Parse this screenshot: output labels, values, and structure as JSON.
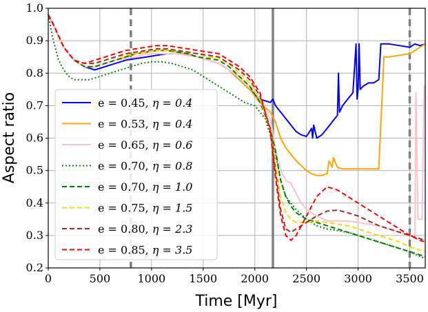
{
  "chart_data": {
    "type": "line",
    "title": "",
    "xlabel": "Time [Myr]",
    "ylabel": "Aspect ratio",
    "xlim": [
      0,
      3650
    ],
    "ylim": [
      0.2,
      1.0
    ],
    "grid": true,
    "legend_position": "center-left",
    "xticks": [
      0,
      500,
      1000,
      1500,
      2000,
      2500,
      3000,
      3500
    ],
    "xtick_labels": [
      "0",
      "500",
      "1000",
      "1500",
      "2000",
      "2500",
      "3000",
      "3500"
    ],
    "yticks": [
      0.2,
      0.3,
      0.4,
      0.5,
      0.6,
      0.7,
      0.8,
      0.9,
      1.0
    ],
    "ytick_labels": [
      "0.2",
      "0.3",
      "0.4",
      "0.5",
      "0.6",
      "0.7",
      "0.8",
      "0.9",
      "1.0"
    ],
    "vertical_lines": [
      {
        "x": 800,
        "style": "dashed"
      },
      {
        "x": 2175,
        "style": "solid"
      },
      {
        "x": 3500,
        "style": "dashed"
      }
    ],
    "series": [
      {
        "name": "e = 0.45, η = 0.4",
        "label_e": "e = 0.45, ",
        "label_eta": "η = 0.4",
        "color": "#0000ff",
        "dash": "solid",
        "x": [
          0,
          50,
          150,
          250,
          350,
          450,
          550,
          650,
          750,
          850,
          950,
          1050,
          1150,
          1250,
          1350,
          1450,
          1550,
          1650,
          1750,
          1850,
          1950,
          2050,
          2150,
          2175,
          2200,
          2250,
          2300,
          2350,
          2400,
          2450,
          2500,
          2550,
          2560,
          2570,
          2600,
          2650,
          2700,
          2750,
          2800,
          2810,
          2820,
          2850,
          2900,
          2950,
          2980,
          2990,
          3000,
          3010,
          3020,
          3050,
          3100,
          3150,
          3200,
          3220,
          3250,
          3300,
          3400,
          3500,
          3550,
          3600,
          3650
        ],
        "y": [
          0.98,
          0.95,
          0.88,
          0.84,
          0.82,
          0.81,
          0.82,
          0.83,
          0.84,
          0.845,
          0.85,
          0.855,
          0.86,
          0.86,
          0.855,
          0.85,
          0.84,
          0.83,
          0.81,
          0.78,
          0.75,
          0.72,
          0.71,
          0.72,
          0.7,
          0.68,
          0.66,
          0.64,
          0.62,
          0.61,
          0.605,
          0.63,
          0.6,
          0.64,
          0.6,
          0.61,
          0.63,
          0.65,
          0.67,
          0.8,
          0.68,
          0.7,
          0.72,
          0.74,
          0.89,
          0.72,
          0.75,
          0.89,
          0.75,
          0.76,
          0.77,
          0.77,
          0.78,
          0.89,
          0.89,
          0.89,
          0.885,
          0.88,
          0.89,
          0.885,
          0.89
        ]
      },
      {
        "name": "e = 0.53, η = 0.4",
        "label_e": "e = 0.53, ",
        "label_eta": "η = 0.4",
        "color": "#ffa500",
        "dash": "solid",
        "x": [
          0,
          50,
          150,
          250,
          350,
          450,
          550,
          650,
          750,
          850,
          950,
          1050,
          1150,
          1250,
          1350,
          1450,
          1550,
          1650,
          1750,
          1850,
          1950,
          2050,
          2150,
          2200,
          2250,
          2300,
          2350,
          2400,
          2450,
          2500,
          2550,
          2600,
          2650,
          2700,
          2720,
          2750,
          2760,
          2800,
          2850,
          3000,
          3100,
          3200,
          3250,
          3300,
          3400,
          3500,
          3600,
          3650
        ],
        "y": [
          0.98,
          0.95,
          0.88,
          0.84,
          0.82,
          0.82,
          0.83,
          0.84,
          0.85,
          0.86,
          0.865,
          0.87,
          0.87,
          0.865,
          0.86,
          0.85,
          0.84,
          0.83,
          0.81,
          0.78,
          0.75,
          0.71,
          0.68,
          0.65,
          0.6,
          0.57,
          0.55,
          0.53,
          0.515,
          0.5,
          0.49,
          0.485,
          0.485,
          0.49,
          0.53,
          0.51,
          0.54,
          0.51,
          0.505,
          0.505,
          0.505,
          0.505,
          0.85,
          0.85,
          0.855,
          0.86,
          0.88,
          0.89
        ]
      },
      {
        "name": "e = 0.65, η = 0.6",
        "label_e": "e = 0.65, ",
        "label_eta": "η = 0.6",
        "color": "#ffc0cb",
        "dash": "solid",
        "x": [
          0,
          50,
          150,
          250,
          350,
          450,
          550,
          650,
          750,
          850,
          950,
          1050,
          1150,
          1250,
          1350,
          1450,
          1550,
          1650,
          1750,
          1850,
          1950,
          2050,
          2150,
          2200,
          2250,
          2300,
          2350,
          2400,
          2450,
          2500,
          2600,
          2700,
          2800,
          2900,
          3000,
          3100,
          3200,
          3300,
          3400,
          3500,
          3550,
          3560,
          3580,
          3600,
          3620,
          3640,
          3650
        ],
        "y": [
          0.98,
          0.95,
          0.88,
          0.84,
          0.82,
          0.82,
          0.83,
          0.84,
          0.845,
          0.85,
          0.86,
          0.86,
          0.86,
          0.86,
          0.855,
          0.85,
          0.84,
          0.83,
          0.81,
          0.79,
          0.76,
          0.72,
          0.66,
          0.57,
          0.5,
          0.47,
          0.46,
          0.43,
          0.4,
          0.38,
          0.36,
          0.345,
          0.345,
          0.345,
          0.34,
          0.335,
          0.33,
          0.32,
          0.31,
          0.3,
          0.3,
          0.74,
          0.35,
          0.35,
          0.35,
          0.76,
          0.76
        ]
      },
      {
        "name": "e = 0.70, η = 0.8",
        "label_e": "e = 0.70, ",
        "label_eta": "η = 0.8",
        "color": "#008000",
        "dash": "dotted",
        "x": [
          0,
          50,
          100,
          150,
          200,
          250,
          300,
          350,
          400,
          450,
          500,
          600,
          700,
          800,
          900,
          1000,
          1100,
          1200,
          1300,
          1400,
          1500,
          1600,
          1700,
          1800,
          1900,
          2000,
          2100,
          2150,
          2200,
          2250,
          2300,
          2400,
          2500,
          2600,
          2700,
          2800,
          2900,
          3000,
          3100,
          3200,
          3300,
          3400,
          3500,
          3600,
          3650
        ],
        "y": [
          0.98,
          0.9,
          0.84,
          0.81,
          0.79,
          0.78,
          0.78,
          0.78,
          0.78,
          0.785,
          0.79,
          0.8,
          0.81,
          0.82,
          0.83,
          0.835,
          0.835,
          0.83,
          0.82,
          0.81,
          0.79,
          0.77,
          0.75,
          0.73,
          0.71,
          0.7,
          0.66,
          0.61,
          0.55,
          0.47,
          0.42,
          0.38,
          0.35,
          0.33,
          0.32,
          0.315,
          0.31,
          0.3,
          0.29,
          0.28,
          0.27,
          0.26,
          0.25,
          0.235,
          0.23
        ]
      },
      {
        "name": "e = 0.70, η = 1.0",
        "label_e": "e = 0.70, ",
        "label_eta": "η = 1.0",
        "color": "#008000",
        "dash": "dashed",
        "x": [
          0,
          50,
          150,
          250,
          350,
          450,
          550,
          650,
          750,
          850,
          950,
          1050,
          1150,
          1250,
          1350,
          1450,
          1550,
          1650,
          1750,
          1850,
          1950,
          2050,
          2150,
          2200,
          2250,
          2300,
          2350,
          2400,
          2500,
          2600,
          2700,
          2800,
          2900,
          3000,
          3100,
          3200,
          3300,
          3400,
          3500,
          3600,
          3650
        ],
        "y": [
          0.98,
          0.95,
          0.88,
          0.84,
          0.82,
          0.82,
          0.83,
          0.84,
          0.85,
          0.86,
          0.865,
          0.87,
          0.87,
          0.865,
          0.86,
          0.85,
          0.845,
          0.84,
          0.82,
          0.79,
          0.76,
          0.71,
          0.63,
          0.56,
          0.47,
          0.42,
          0.39,
          0.37,
          0.35,
          0.34,
          0.33,
          0.32,
          0.31,
          0.3,
          0.29,
          0.28,
          0.27,
          0.26,
          0.25,
          0.24,
          0.235
        ]
      },
      {
        "name": "e = 0.75, η = 1.5",
        "label_e": "e = 0.75, ",
        "label_eta": "η = 1.5",
        "color": "#ffd700",
        "dash": "dashed",
        "x": [
          0,
          50,
          150,
          250,
          350,
          450,
          550,
          650,
          750,
          850,
          950,
          1050,
          1150,
          1250,
          1350,
          1450,
          1550,
          1650,
          1750,
          1850,
          1950,
          2050,
          2150,
          2200,
          2250,
          2300,
          2350,
          2400,
          2500,
          2600,
          2700,
          2800,
          2900,
          3000,
          3100,
          3200,
          3300,
          3400,
          3500,
          3600,
          3650
        ],
        "y": [
          0.98,
          0.95,
          0.88,
          0.84,
          0.83,
          0.83,
          0.84,
          0.85,
          0.855,
          0.86,
          0.865,
          0.87,
          0.87,
          0.87,
          0.865,
          0.86,
          0.85,
          0.845,
          0.83,
          0.8,
          0.77,
          0.72,
          0.63,
          0.52,
          0.42,
          0.37,
          0.35,
          0.34,
          0.34,
          0.345,
          0.34,
          0.335,
          0.33,
          0.32,
          0.31,
          0.3,
          0.29,
          0.28,
          0.265,
          0.255,
          0.25
        ]
      },
      {
        "name": "e = 0.80, η = 2.3",
        "label_e": "e = 0.80, ",
        "label_eta": "η = 2.3",
        "color": "#a52a2a",
        "dash": "dashed",
        "x": [
          0,
          50,
          150,
          250,
          350,
          450,
          550,
          650,
          750,
          850,
          950,
          1050,
          1150,
          1250,
          1350,
          1450,
          1550,
          1650,
          1750,
          1850,
          1950,
          2050,
          2150,
          2200,
          2250,
          2300,
          2350,
          2400,
          2500,
          2600,
          2700,
          2800,
          2900,
          3000,
          3100,
          3200,
          3300,
          3400,
          3500,
          3600,
          3650
        ],
        "y": [
          0.98,
          0.95,
          0.88,
          0.84,
          0.83,
          0.83,
          0.84,
          0.85,
          0.86,
          0.865,
          0.87,
          0.875,
          0.875,
          0.87,
          0.865,
          0.86,
          0.855,
          0.85,
          0.83,
          0.81,
          0.78,
          0.73,
          0.63,
          0.5,
          0.38,
          0.32,
          0.31,
          0.32,
          0.34,
          0.36,
          0.375,
          0.378,
          0.37,
          0.36,
          0.345,
          0.33,
          0.32,
          0.31,
          0.3,
          0.29,
          0.285
        ]
      },
      {
        "name": "e = 0.85, η = 3.5",
        "label_e": "e = 0.85, ",
        "label_eta": "η = 3.5",
        "color": "#ff0000",
        "dash": "dashed",
        "x": [
          0,
          50,
          150,
          250,
          350,
          450,
          550,
          650,
          750,
          850,
          950,
          1050,
          1150,
          1250,
          1350,
          1450,
          1550,
          1650,
          1750,
          1850,
          1950,
          2050,
          2150,
          2200,
          2250,
          2300,
          2350,
          2400,
          2500,
          2600,
          2700,
          2800,
          2900,
          3000,
          3100,
          3200,
          3300,
          3400,
          3500,
          3600,
          3650
        ],
        "y": [
          0.98,
          0.95,
          0.88,
          0.84,
          0.83,
          0.84,
          0.85,
          0.86,
          0.87,
          0.875,
          0.88,
          0.885,
          0.885,
          0.88,
          0.875,
          0.87,
          0.865,
          0.86,
          0.84,
          0.82,
          0.79,
          0.74,
          0.62,
          0.48,
          0.36,
          0.3,
          0.285,
          0.3,
          0.36,
          0.42,
          0.45,
          0.44,
          0.42,
          0.4,
          0.38,
          0.36,
          0.34,
          0.32,
          0.3,
          0.285,
          0.28
        ]
      }
    ]
  }
}
